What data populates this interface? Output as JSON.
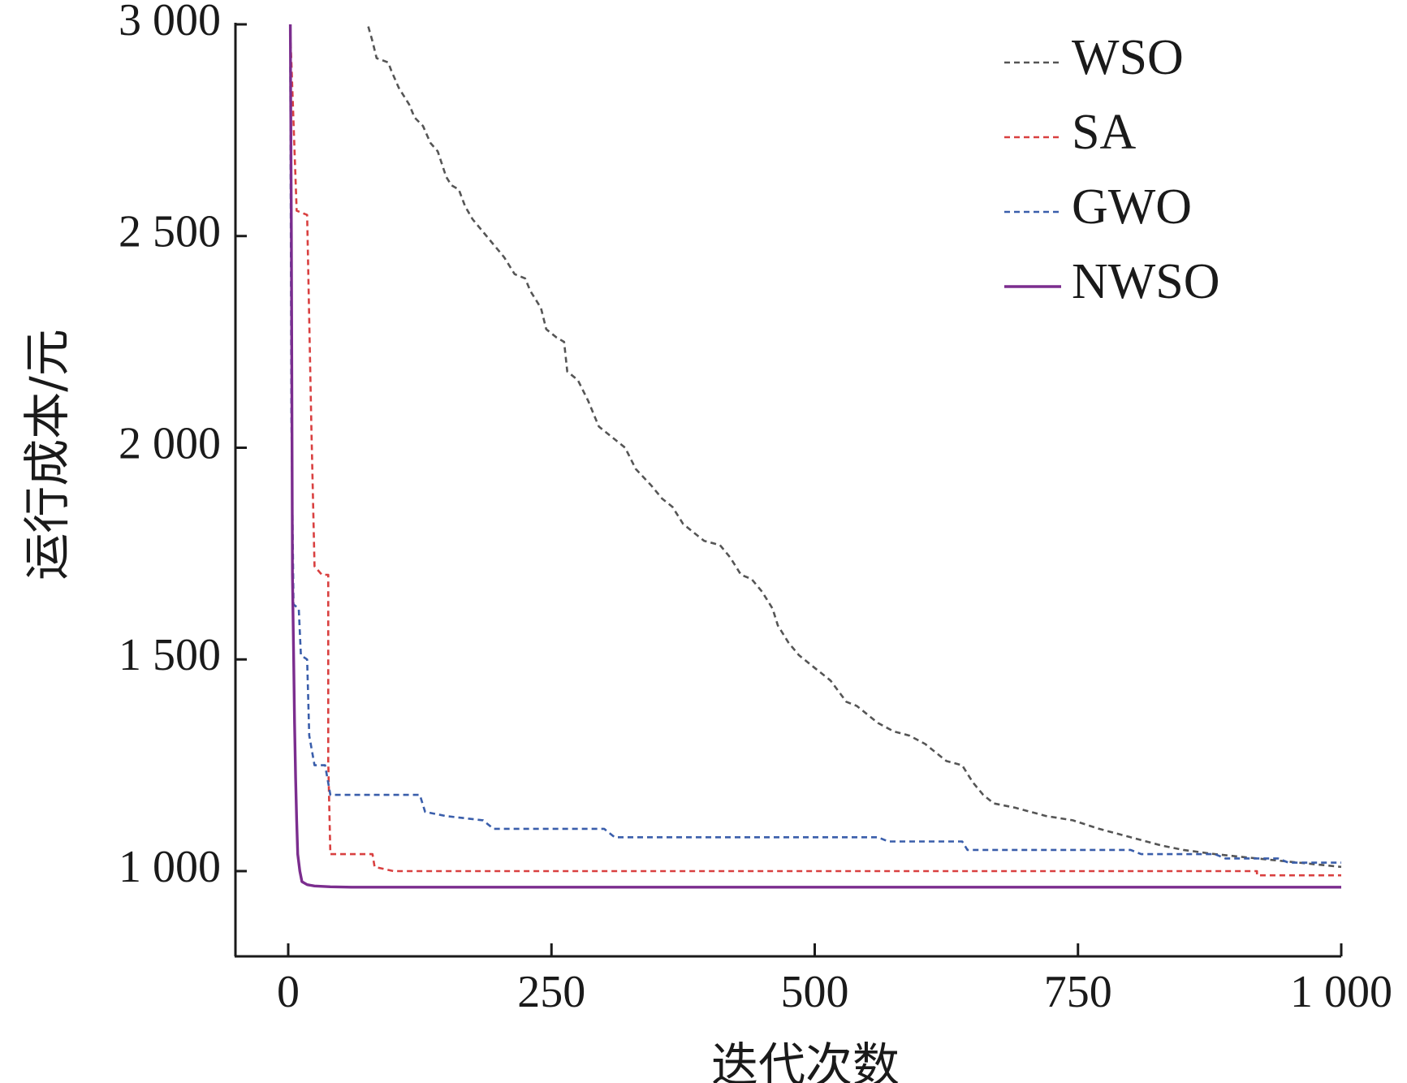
{
  "chart_data": {
    "type": "line",
    "title": "",
    "xlabel": "迭代次数",
    "ylabel": "运行成本/元",
    "xlim": [
      -50,
      1000
    ],
    "ylim": [
      800,
      3000
    ],
    "x_ticks": [
      0,
      250,
      500,
      750,
      1000
    ],
    "x_tick_labels": [
      "0",
      "250",
      "500",
      "750",
      "1 000"
    ],
    "y_ticks": [
      1000,
      1500,
      2000,
      2500,
      3000
    ],
    "y_tick_labels": [
      "1 000",
      "1 500",
      "2 000",
      "2 500",
      "3 000"
    ],
    "grid": false,
    "legend_position": "top-right",
    "series": [
      {
        "name": "WSO",
        "color": "#555555",
        "dash": "dashed",
        "points": [
          [
            76,
            2995
          ],
          [
            80,
            2960
          ],
          [
            84,
            2920
          ],
          [
            95,
            2910
          ],
          [
            98,
            2890
          ],
          [
            105,
            2850
          ],
          [
            115,
            2810
          ],
          [
            120,
            2780
          ],
          [
            128,
            2760
          ],
          [
            135,
            2720
          ],
          [
            142,
            2700
          ],
          [
            150,
            2640
          ],
          [
            155,
            2620
          ],
          [
            162,
            2610
          ],
          [
            168,
            2570
          ],
          [
            175,
            2540
          ],
          [
            185,
            2510
          ],
          [
            195,
            2480
          ],
          [
            205,
            2450
          ],
          [
            215,
            2410
          ],
          [
            225,
            2400
          ],
          [
            230,
            2370
          ],
          [
            240,
            2330
          ],
          [
            245,
            2280
          ],
          [
            255,
            2260
          ],
          [
            262,
            2250
          ],
          [
            265,
            2180
          ],
          [
            275,
            2160
          ],
          [
            285,
            2110
          ],
          [
            290,
            2080
          ],
          [
            295,
            2050
          ],
          [
            305,
            2030
          ],
          [
            320,
            2000
          ],
          [
            330,
            1950
          ],
          [
            345,
            1910
          ],
          [
            355,
            1880
          ],
          [
            365,
            1860
          ],
          [
            375,
            1820
          ],
          [
            385,
            1800
          ],
          [
            395,
            1780
          ],
          [
            410,
            1770
          ],
          [
            420,
            1740
          ],
          [
            430,
            1700
          ],
          [
            440,
            1690
          ],
          [
            450,
            1660
          ],
          [
            460,
            1620
          ],
          [
            465,
            1580
          ],
          [
            475,
            1540
          ],
          [
            485,
            1510
          ],
          [
            495,
            1490
          ],
          [
            505,
            1470
          ],
          [
            515,
            1450
          ],
          [
            530,
            1400
          ],
          [
            540,
            1390
          ],
          [
            550,
            1370
          ],
          [
            560,
            1350
          ],
          [
            575,
            1330
          ],
          [
            590,
            1320
          ],
          [
            605,
            1300
          ],
          [
            615,
            1280
          ],
          [
            625,
            1260
          ],
          [
            640,
            1250
          ],
          [
            650,
            1210
          ],
          [
            660,
            1180
          ],
          [
            670,
            1160
          ],
          [
            690,
            1150
          ],
          [
            705,
            1140
          ],
          [
            720,
            1130
          ],
          [
            745,
            1120
          ],
          [
            770,
            1100
          ],
          [
            800,
            1080
          ],
          [
            830,
            1060
          ],
          [
            850,
            1050
          ],
          [
            880,
            1040
          ],
          [
            920,
            1030
          ],
          [
            960,
            1020
          ],
          [
            1000,
            1010
          ]
        ]
      },
      {
        "name": "SA",
        "color": "#d94040",
        "dash": "dashed",
        "points": [
          [
            2,
            2980
          ],
          [
            8,
            2560
          ],
          [
            18,
            2550
          ],
          [
            22,
            2050
          ],
          [
            25,
            1720
          ],
          [
            32,
            1700
          ],
          [
            38,
            1700
          ],
          [
            38,
            1260
          ],
          [
            40,
            1040
          ],
          [
            80,
            1040
          ],
          [
            82,
            1010
          ],
          [
            100,
            1000
          ],
          [
            920,
            1000
          ],
          [
            920,
            990
          ],
          [
            1000,
            990
          ]
        ]
      },
      {
        "name": "GWO",
        "color": "#3a5eab",
        "dash": "dashed",
        "points": [
          [
            2,
            2900
          ],
          [
            3,
            2080
          ],
          [
            5,
            1630
          ],
          [
            10,
            1620
          ],
          [
            12,
            1510
          ],
          [
            18,
            1500
          ],
          [
            20,
            1320
          ],
          [
            25,
            1250
          ],
          [
            35,
            1250
          ],
          [
            40,
            1180
          ],
          [
            125,
            1180
          ],
          [
            130,
            1140
          ],
          [
            150,
            1130
          ],
          [
            185,
            1120
          ],
          [
            195,
            1100
          ],
          [
            300,
            1100
          ],
          [
            310,
            1080
          ],
          [
            560,
            1080
          ],
          [
            570,
            1070
          ],
          [
            640,
            1070
          ],
          [
            645,
            1050
          ],
          [
            800,
            1050
          ],
          [
            810,
            1040
          ],
          [
            880,
            1040
          ],
          [
            890,
            1030
          ],
          [
            940,
            1030
          ],
          [
            950,
            1020
          ],
          [
            1000,
            1020
          ]
        ]
      },
      {
        "name": "NWSO",
        "color": "#7b2d8e",
        "dash": "solid",
        "points": [
          [
            2,
            3000
          ],
          [
            3,
            2500
          ],
          [
            4,
            1700
          ],
          [
            5,
            1530
          ],
          [
            6,
            1350
          ],
          [
            7,
            1220
          ],
          [
            8,
            1120
          ],
          [
            9,
            1040
          ],
          [
            11,
            1000
          ],
          [
            13,
            975
          ],
          [
            18,
            968
          ],
          [
            25,
            965
          ],
          [
            40,
            963
          ],
          [
            60,
            962
          ],
          [
            1000,
            962
          ]
        ]
      }
    ]
  }
}
